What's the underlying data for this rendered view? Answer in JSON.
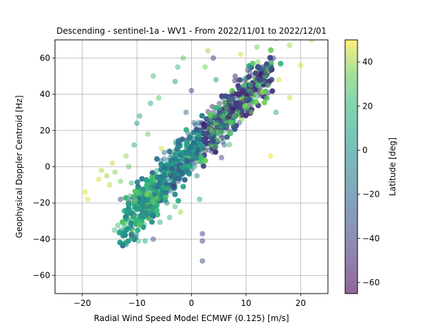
{
  "chart_data": {
    "type": "scatter",
    "title": "Descending - sentinel-1a - WV1 - From 2022/11/01 to 2022/12/01",
    "xlabel": "Radial Wind Speed Model ECMWF (0.125) [m/s]",
    "ylabel": "Geophysical Doppler Centroid [Hz]",
    "xlim": [
      -25,
      25
    ],
    "ylim": [
      -70,
      70
    ],
    "xticks": [
      -20,
      -10,
      0,
      10,
      20
    ],
    "yticks": [
      -60,
      -40,
      -20,
      0,
      20,
      40,
      60
    ],
    "grid": true,
    "colorbar": {
      "label": "Latitude [deg]",
      "range": [
        -65,
        50
      ],
      "ticks": [
        -60,
        -40,
        -20,
        0,
        20,
        40
      ],
      "colormap": "viridis"
    },
    "point_alpha": 0.5,
    "points_xyc": [
      [
        -19.5,
        -14,
        47
      ],
      [
        -19,
        -18,
        47
      ],
      [
        -17,
        -7,
        45
      ],
      [
        -16.5,
        -2,
        42
      ],
      [
        -15.5,
        -5,
        40
      ],
      [
        -14.5,
        2,
        45
      ],
      [
        -14,
        -3,
        38
      ],
      [
        -15,
        -10,
        42
      ],
      [
        -13,
        -8,
        35
      ],
      [
        -13,
        -18,
        -40
      ],
      [
        -12,
        6,
        40
      ],
      [
        -11.5,
        0,
        30
      ],
      [
        -11,
        -9,
        20
      ],
      [
        -11,
        -38,
        -35
      ],
      [
        -10.5,
        12,
        15
      ],
      [
        -10,
        24,
        5
      ],
      [
        -9.5,
        28,
        10
      ],
      [
        -9,
        -25,
        -15
      ],
      [
        -8.5,
        -41,
        12
      ],
      [
        -7,
        -40,
        -30
      ],
      [
        -8,
        18,
        35
      ],
      [
        -7.5,
        35,
        15
      ],
      [
        -7,
        50,
        25
      ],
      [
        -6,
        38,
        30
      ],
      [
        -5.5,
        10,
        45
      ],
      [
        -5,
        -5,
        0
      ],
      [
        -4.5,
        -20,
        -10
      ],
      [
        -4,
        -28,
        20
      ],
      [
        -3,
        -22,
        25
      ],
      [
        -2,
        -25,
        40
      ],
      [
        -3,
        47,
        5
      ],
      [
        -2.5,
        55,
        20
      ],
      [
        -1.5,
        60,
        30
      ],
      [
        -1,
        30,
        -20
      ],
      [
        0,
        42,
        -45
      ],
      [
        0.5,
        12,
        -10
      ],
      [
        1,
        -5,
        -5
      ],
      [
        1.5,
        -18,
        10
      ],
      [
        2,
        -37,
        -40
      ],
      [
        2,
        -41,
        -40
      ],
      [
        2,
        -52,
        -35
      ],
      [
        2.5,
        55,
        35
      ],
      [
        3,
        64,
        40
      ],
      [
        4,
        60,
        -50
      ],
      [
        4.5,
        48,
        10
      ],
      [
        5,
        30,
        -30
      ],
      [
        5.5,
        5,
        -40
      ],
      [
        6,
        12,
        -20
      ],
      [
        6.5,
        22,
        15
      ],
      [
        7,
        35,
        -45
      ],
      [
        8,
        50,
        -55
      ],
      [
        9,
        62,
        45
      ],
      [
        10,
        40,
        -60
      ],
      [
        11,
        30,
        40
      ],
      [
        12,
        66,
        35
      ],
      [
        13,
        55,
        -30
      ],
      [
        14,
        45,
        30
      ],
      [
        14.5,
        6,
        48
      ],
      [
        15,
        60,
        -40
      ],
      [
        15.5,
        30,
        10
      ],
      [
        16,
        48,
        45
      ],
      [
        18,
        38,
        45
      ],
      [
        18,
        67,
        40
      ],
      [
        20,
        56,
        45
      ],
      [
        22,
        70,
        42
      ]
    ]
  }
}
